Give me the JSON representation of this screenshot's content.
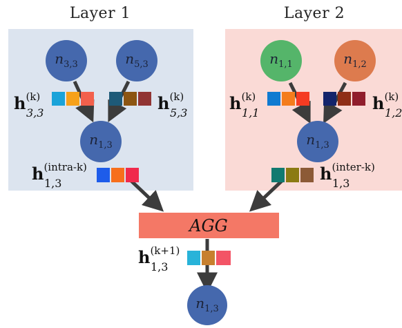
{
  "colors": {
    "layer1_bg": "#dce4ef",
    "layer2_bg": "#fadad6",
    "node_blue": "#4568ad",
    "node_green": "#55b56a",
    "node_orange": "#dd7b4e",
    "agg_box": "#f47866",
    "arrow": "#3c3c3c"
  },
  "panels": {
    "layer1_title": "Layer 1",
    "layer2_title": "Layer 2"
  },
  "nodes": {
    "l1_n33": {
      "base": "n",
      "sub": "3,3",
      "color": "#4568ad"
    },
    "l1_n53": {
      "base": "n",
      "sub": "5,3",
      "color": "#4568ad"
    },
    "l1_n13": {
      "base": "n",
      "sub": "1,3",
      "color": "#4568ad"
    },
    "l2_n11": {
      "base": "n",
      "sub": "1,1",
      "color": "#55b56a"
    },
    "l2_n12": {
      "base": "n",
      "sub": "1,2",
      "color": "#dd7b4e"
    },
    "l2_n13": {
      "base": "n",
      "sub": "1,3",
      "color": "#4568ad"
    },
    "out_n13": {
      "base": "n",
      "sub": "1,3",
      "color": "#4568ad"
    }
  },
  "embeddings": {
    "h33": {
      "base": "h",
      "sup": "(k)",
      "sub": "3,3",
      "colors": [
        "#1aa3d9",
        "#f7a11a",
        "#f2604c"
      ]
    },
    "h53": {
      "base": "h",
      "sup": "(k)",
      "sub": "5,3",
      "colors": [
        "#1e5a78",
        "#8c5512",
        "#913434"
      ]
    },
    "h11": {
      "base": "h",
      "sup": "(k)",
      "sub": "1,1",
      "colors": [
        "#0f7ad1",
        "#f47c1c",
        "#f53b22"
      ]
    },
    "h12": {
      "base": "h",
      "sup": "(k)",
      "sub": "1,2",
      "colors": [
        "#14246b",
        "#8f2e16",
        "#901d2c"
      ]
    },
    "h_intra": {
      "base": "h",
      "sup": "(intra-k)",
      "sub": "1,3",
      "colors": [
        "#1e5cea",
        "#f76f1c",
        "#f02a4c"
      ]
    },
    "h_inter": {
      "base": "h",
      "sup": "(inter-k)",
      "sub": "1,3",
      "colors": [
        "#117a70",
        "#8b7a12",
        "#8c5a36"
      ]
    },
    "h_next": {
      "base": "h",
      "sup": "(k+1)",
      "sub": "1,3",
      "colors": [
        "#28b3d9",
        "#c7802e",
        "#f35466"
      ]
    }
  },
  "agg": {
    "label": "AGG"
  }
}
